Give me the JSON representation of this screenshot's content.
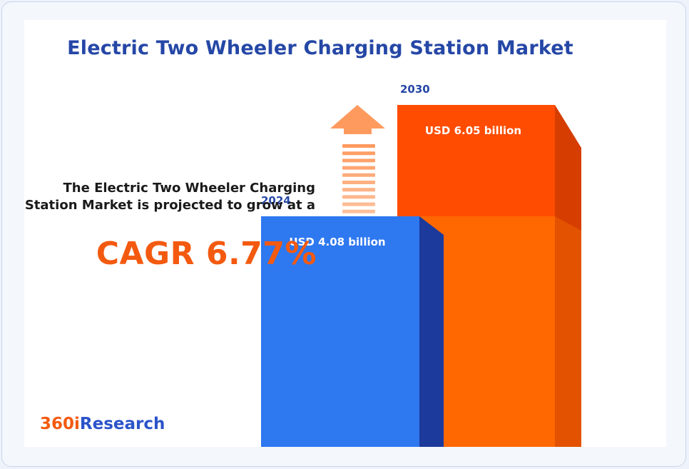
{
  "title": "Electric Two Wheeler Charging Station Market",
  "description": "The Electric Two Wheeler Charging Station Market is projected to grow at a",
  "cagr_label": "CAGR 6.77%",
  "brand": {
    "prefix": "360i",
    "suffix": "Research"
  },
  "colors": {
    "bar_2024": "#2e78f0",
    "bar_2024_side": "#1c3a9c",
    "bar_2030": "#ff4c00",
    "bar_2030_side": "#d63d00",
    "arrow": "#ff9a5f",
    "accent": "#f35a10",
    "title": "#2547a6"
  },
  "chart_data": {
    "type": "bar",
    "categories": [
      "2024",
      "2030"
    ],
    "values": [
      4.08,
      6.05
    ],
    "data_labels": [
      "USD 4.08 billion",
      "USD 6.05 billion"
    ],
    "unit": "USD billion",
    "title": "Electric Two Wheeler Charging Station Market",
    "xlabel": "",
    "ylabel": "",
    "grid": false,
    "legend": "none"
  }
}
